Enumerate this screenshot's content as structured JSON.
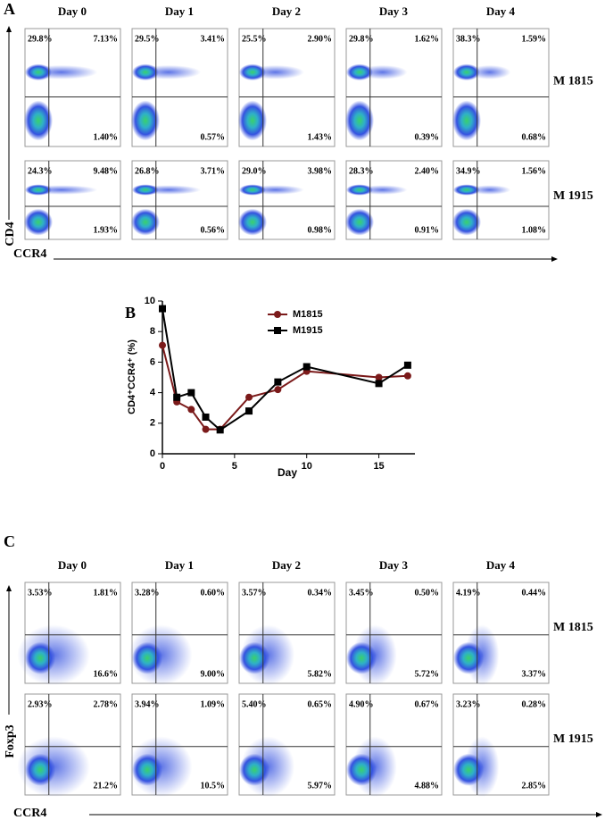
{
  "panel_a": {
    "label": "A",
    "y_axis_label": "CD4",
    "x_axis_label": "CCR4",
    "days": [
      "Day 0",
      "Day 1",
      "Day 2",
      "Day 3",
      "Day 4"
    ],
    "rows": [
      {
        "name": "M 1815",
        "plots": [
          {
            "upper_left": "29.8%",
            "upper_right": "7.13%",
            "lower_right": "1.40%"
          },
          {
            "upper_left": "29.5%",
            "upper_right": "3.41%",
            "lower_right": "0.57%"
          },
          {
            "upper_left": "25.5%",
            "upper_right": "2.90%",
            "lower_right": "1.43%"
          },
          {
            "upper_left": "29.8%",
            "upper_right": "1.62%",
            "lower_right": "0.39%"
          },
          {
            "upper_left": "38.3%",
            "upper_right": "1.59%",
            "lower_right": "0.68%"
          }
        ]
      },
      {
        "name": "M 1915",
        "plots": [
          {
            "upper_left": "24.3%",
            "upper_right": "9.48%",
            "lower_right": "1.93%"
          },
          {
            "upper_left": "26.8%",
            "upper_right": "3.71%",
            "lower_right": "0.56%"
          },
          {
            "upper_left": "29.0%",
            "upper_right": "3.98%",
            "lower_right": "0.98%"
          },
          {
            "upper_left": "28.3%",
            "upper_right": "2.40%",
            "lower_right": "0.91%"
          },
          {
            "upper_left": "34.9%",
            "upper_right": "1.56%",
            "lower_right": "1.08%"
          }
        ]
      }
    ]
  },
  "chart_data": {
    "type": "line",
    "label": "B",
    "x_label": "Day",
    "y_label": "CD4⁺CCR4⁺ (%)",
    "x": [
      0,
      1,
      2,
      3,
      4,
      6,
      8,
      10,
      15,
      17
    ],
    "series": [
      {
        "name": "M1815",
        "color": "#7b1a1a",
        "marker": "circle",
        "values": [
          7.1,
          3.4,
          2.9,
          1.6,
          1.6,
          3.7,
          4.2,
          5.4,
          5.0,
          5.1
        ]
      },
      {
        "name": "M1915",
        "color": "#000000",
        "marker": "square",
        "values": [
          9.5,
          3.7,
          4.0,
          2.4,
          1.56,
          2.8,
          4.7,
          5.7,
          4.6,
          5.8
        ]
      }
    ],
    "xlim": [
      0,
      17.5
    ],
    "xticks": [
      0,
      5,
      10,
      15
    ],
    "ylim": [
      0,
      10
    ],
    "yticks": [
      0,
      2,
      4,
      6,
      8,
      10
    ],
    "legend": "upper right"
  },
  "panel_c": {
    "label": "C",
    "y_axis_label": "Foxp3",
    "x_axis_label": "CCR4",
    "days": [
      "Day 0",
      "Day 1",
      "Day 2",
      "Day 3",
      "Day 4"
    ],
    "rows": [
      {
        "name": "M 1815",
        "plots": [
          {
            "upper_left": "3.53%",
            "upper_right": "1.81%",
            "lower_right": "16.6%"
          },
          {
            "upper_left": "3.28%",
            "upper_right": "0.60%",
            "lower_right": "9.00%"
          },
          {
            "upper_left": "3.57%",
            "upper_right": "0.34%",
            "lower_right": "5.82%"
          },
          {
            "upper_left": "3.45%",
            "upper_right": "0.50%",
            "lower_right": "5.72%"
          },
          {
            "upper_left": "4.19%",
            "upper_right": "0.44%",
            "lower_right": "3.37%"
          }
        ]
      },
      {
        "name": "M 1915",
        "plots": [
          {
            "upper_left": "2.93%",
            "upper_right": "2.78%",
            "lower_right": "21.2%"
          },
          {
            "upper_left": "3.94%",
            "upper_right": "1.09%",
            "lower_right": "10.5%"
          },
          {
            "upper_left": "5.40%",
            "upper_right": "0.65%",
            "lower_right": "5.97%"
          },
          {
            "upper_left": "4.90%",
            "upper_right": "0.67%",
            "lower_right": "4.88%"
          },
          {
            "upper_left": "3.23%",
            "upper_right": "0.28%",
            "lower_right": "2.85%"
          }
        ]
      }
    ]
  }
}
